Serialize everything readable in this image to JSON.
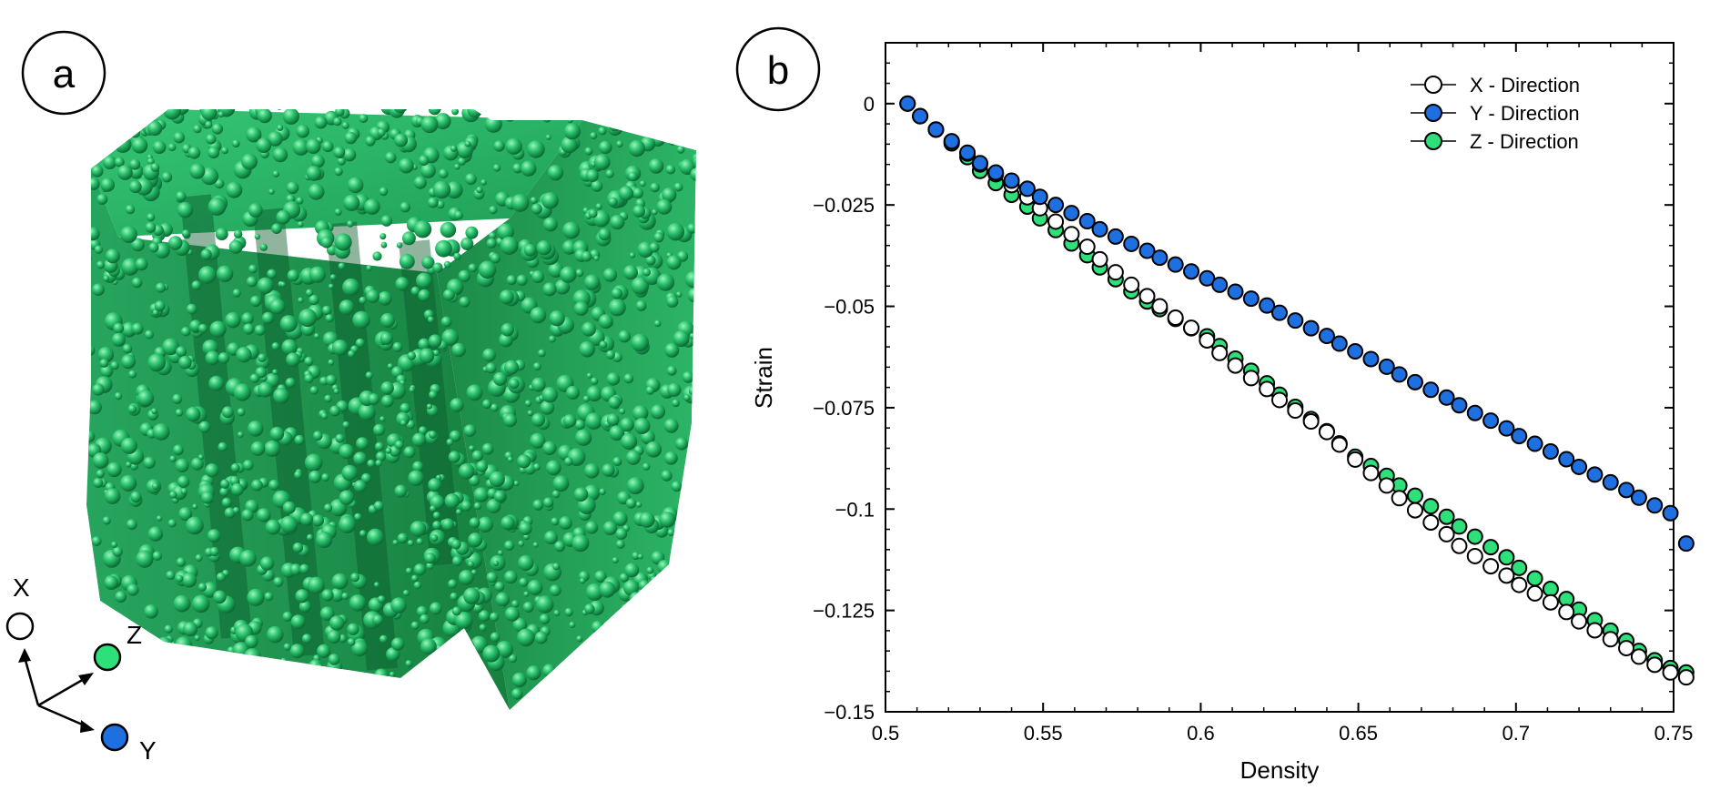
{
  "panel_a": {
    "label": "a",
    "axes": {
      "x_label": "X",
      "y_label": "Y",
      "z_label": "Z"
    },
    "colors": {
      "particles": "#1fb060",
      "x_marker": "#ffffff",
      "y_marker": "#1e6fe0",
      "z_marker": "#2ee07a"
    }
  },
  "panel_b": {
    "label": "b"
  },
  "chart_data": {
    "type": "scatter",
    "xlabel": "Density",
    "ylabel": "Strain",
    "xlim": [
      0.5,
      0.75
    ],
    "ylim": [
      -0.15,
      0.015
    ],
    "xticks": [
      {
        "value": 0.5,
        "label": "0.5"
      },
      {
        "value": 0.55,
        "label": "0.55"
      },
      {
        "value": 0.6,
        "label": "0.6"
      },
      {
        "value": 0.65,
        "label": "0.65"
      },
      {
        "value": 0.7,
        "label": "0.7"
      },
      {
        "value": 0.75,
        "label": "0.75"
      }
    ],
    "yticks": [
      {
        "value": 0,
        "label": "0"
      },
      {
        "value": -0.025,
        "label": "−0.025"
      },
      {
        "value": -0.05,
        "label": "−0.05"
      },
      {
        "value": -0.075,
        "label": "−0.075"
      },
      {
        "value": -0.1,
        "label": "−0.1"
      },
      {
        "value": -0.125,
        "label": "−0.125"
      },
      {
        "value": -0.15,
        "label": "−0.15"
      }
    ],
    "legend_position": "top-right",
    "grid": false,
    "series": [
      {
        "name": "Z - Direction",
        "color": "#2ee07a",
        "x": [
          0.507,
          0.511,
          0.516,
          0.521,
          0.526,
          0.53,
          0.535,
          0.54,
          0.545,
          0.549,
          0.554,
          0.559,
          0.564,
          0.568,
          0.573,
          0.578,
          0.583,
          0.587,
          0.592,
          0.597,
          0.602,
          0.606,
          0.611,
          0.616,
          0.621,
          0.625,
          0.63,
          0.635,
          0.64,
          0.644,
          0.649,
          0.654,
          0.659,
          0.663,
          0.668,
          0.673,
          0.678,
          0.682,
          0.687,
          0.692,
          0.697,
          0.701,
          0.706,
          0.711,
          0.716,
          0.72,
          0.725,
          0.73,
          0.735,
          0.739,
          0.744,
          0.749,
          0.754
        ],
        "y": [
          0.0,
          -0.0031,
          -0.0064,
          -0.0098,
          -0.0132,
          -0.0166,
          -0.0196,
          -0.0225,
          -0.0254,
          -0.0283,
          -0.0312,
          -0.0345,
          -0.0374,
          -0.0404,
          -0.0433,
          -0.0463,
          -0.0488,
          -0.0507,
          -0.0531,
          -0.0554,
          -0.0574,
          -0.0598,
          -0.0629,
          -0.0659,
          -0.069,
          -0.0718,
          -0.0748,
          -0.0778,
          -0.0808,
          -0.0838,
          -0.0871,
          -0.0894,
          -0.0918,
          -0.0942,
          -0.0967,
          -0.0993,
          -0.1019,
          -0.1043,
          -0.1068,
          -0.1094,
          -0.1119,
          -0.1145,
          -0.1171,
          -0.1197,
          -0.1222,
          -0.1248,
          -0.1274,
          -0.13,
          -0.1325,
          -0.135,
          -0.1373,
          -0.1392,
          -0.1403
        ]
      },
      {
        "name": "X - Direction",
        "color": "#ffffff",
        "x": [
          0.507,
          0.511,
          0.516,
          0.521,
          0.526,
          0.53,
          0.535,
          0.54,
          0.545,
          0.549,
          0.554,
          0.559,
          0.564,
          0.568,
          0.573,
          0.578,
          0.583,
          0.587,
          0.592,
          0.597,
          0.602,
          0.606,
          0.611,
          0.616,
          0.621,
          0.625,
          0.63,
          0.635,
          0.64,
          0.644,
          0.649,
          0.654,
          0.659,
          0.663,
          0.668,
          0.673,
          0.678,
          0.682,
          0.687,
          0.692,
          0.697,
          0.701,
          0.706,
          0.711,
          0.716,
          0.72,
          0.725,
          0.73,
          0.735,
          0.739,
          0.744,
          0.749,
          0.754
        ],
        "y": [
          0.0,
          -0.0031,
          -0.0064,
          -0.0093,
          -0.0123,
          -0.015,
          -0.0174,
          -0.0201,
          -0.0231,
          -0.0258,
          -0.0291,
          -0.0322,
          -0.0353,
          -0.0384,
          -0.0416,
          -0.0447,
          -0.0475,
          -0.05,
          -0.0528,
          -0.0553,
          -0.0584,
          -0.0615,
          -0.0646,
          -0.0677,
          -0.0704,
          -0.0731,
          -0.0757,
          -0.0784,
          -0.081,
          -0.0841,
          -0.0878,
          -0.0911,
          -0.0942,
          -0.0973,
          -0.1003,
          -0.1033,
          -0.1062,
          -0.1091,
          -0.1116,
          -0.1141,
          -0.1164,
          -0.1187,
          -0.1208,
          -0.123,
          -0.1254,
          -0.1277,
          -0.1299,
          -0.1321,
          -0.1343,
          -0.1364,
          -0.1384,
          -0.1403,
          -0.1415
        ]
      },
      {
        "name": "Y - Direction",
        "color": "#1e6fe0",
        "x": [
          0.507,
          0.511,
          0.516,
          0.521,
          0.526,
          0.53,
          0.535,
          0.54,
          0.545,
          0.549,
          0.554,
          0.559,
          0.564,
          0.568,
          0.573,
          0.578,
          0.583,
          0.587,
          0.592,
          0.597,
          0.602,
          0.606,
          0.611,
          0.616,
          0.621,
          0.625,
          0.63,
          0.635,
          0.64,
          0.644,
          0.649,
          0.654,
          0.659,
          0.663,
          0.668,
          0.673,
          0.678,
          0.682,
          0.687,
          0.692,
          0.697,
          0.701,
          0.706,
          0.711,
          0.716,
          0.72,
          0.725,
          0.73,
          0.735,
          0.739,
          0.744,
          0.749,
          0.754
        ],
        "y": [
          0.0,
          -0.0031,
          -0.0064,
          -0.0093,
          -0.0121,
          -0.0147,
          -0.017,
          -0.019,
          -0.021,
          -0.023,
          -0.025,
          -0.027,
          -0.029,
          -0.031,
          -0.0328,
          -0.0346,
          -0.0363,
          -0.038,
          -0.0397,
          -0.0414,
          -0.0431,
          -0.0447,
          -0.0464,
          -0.0481,
          -0.0498,
          -0.0516,
          -0.0535,
          -0.0554,
          -0.0573,
          -0.0592,
          -0.0611,
          -0.063,
          -0.0649,
          -0.0668,
          -0.0687,
          -0.0706,
          -0.0725,
          -0.0744,
          -0.0763,
          -0.0782,
          -0.0801,
          -0.082,
          -0.0839,
          -0.0858,
          -0.0877,
          -0.0896,
          -0.0915,
          -0.0934,
          -0.0953,
          -0.0972,
          -0.0991,
          -0.101,
          -0.1085
        ]
      }
    ],
    "legend": [
      {
        "name": "X - Direction",
        "color": "#ffffff"
      },
      {
        "name": "Y - Direction",
        "color": "#1e6fe0"
      },
      {
        "name": "Z - Direction",
        "color": "#2ee07a"
      }
    ]
  }
}
